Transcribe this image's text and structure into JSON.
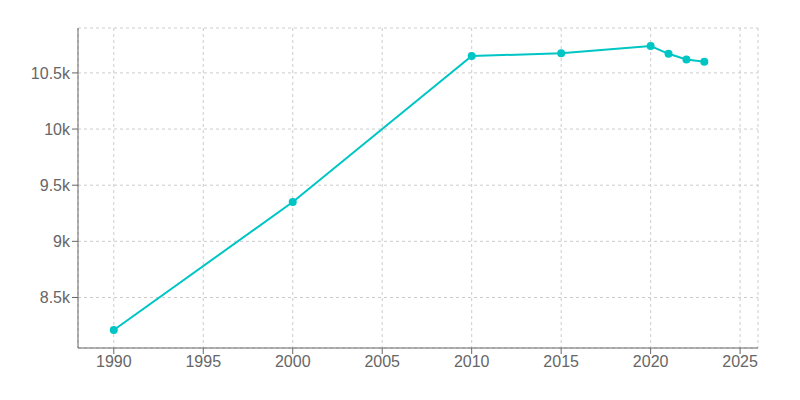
{
  "chart_data": {
    "type": "line",
    "x": [
      1990,
      2000,
      2010,
      2015,
      2020,
      2021,
      2022,
      2023
    ],
    "values": [
      8210,
      9350,
      10650,
      10675,
      10740,
      10670,
      10620,
      10600
    ],
    "color": "#00C5C5",
    "marker": "circle",
    "xlim": [
      1988,
      2026
    ],
    "ylim": [
      8050,
      10900
    ],
    "xticks": [
      1990,
      1995,
      2000,
      2005,
      2010,
      2015,
      2020,
      2025
    ],
    "yticks": [
      {
        "value": 8500,
        "label": "8.5k"
      },
      {
        "value": 9000,
        "label": "9k"
      },
      {
        "value": 9500,
        "label": "9.5k"
      },
      {
        "value": 10000,
        "label": "10k"
      },
      {
        "value": 10500,
        "label": "10.5k"
      }
    ],
    "grid": true
  }
}
